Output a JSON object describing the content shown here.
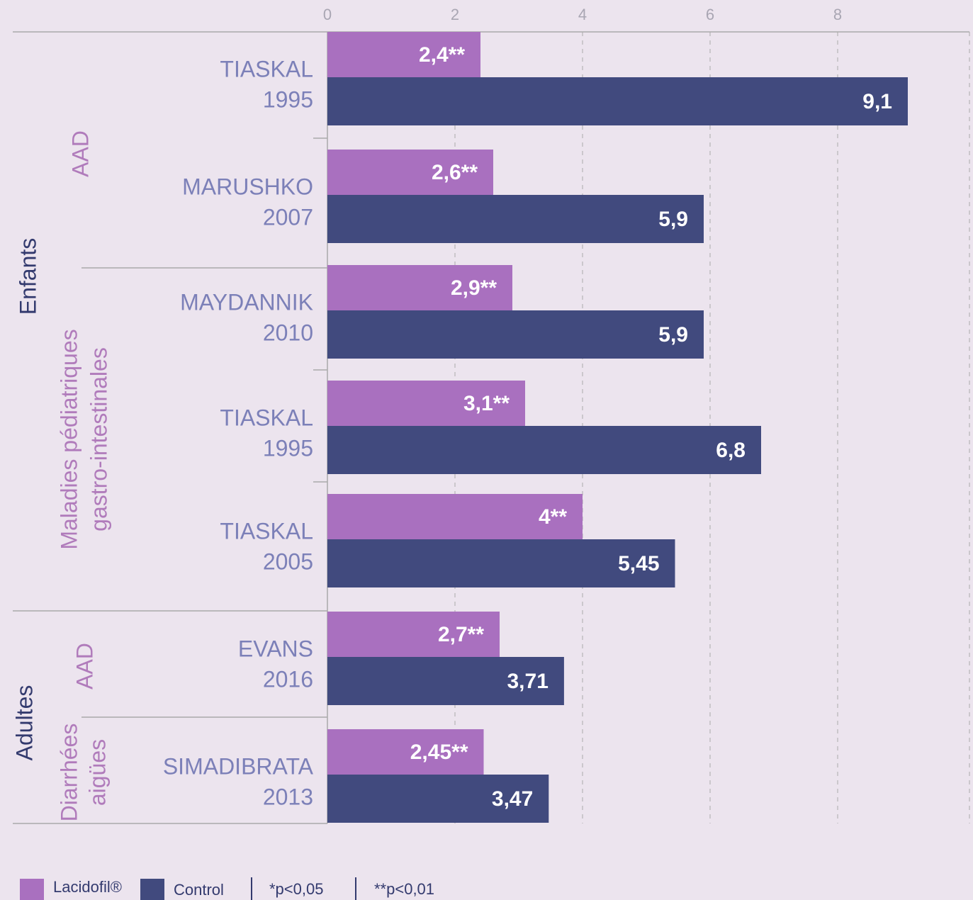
{
  "chart_data": {
    "type": "bar",
    "orientation": "horizontal",
    "categories": [
      [
        "TIASKAL",
        "1995"
      ],
      [
        "MARUSHKO",
        "2007"
      ],
      [
        "MAYDANNIK",
        "2010"
      ],
      [
        "TIASKAL",
        "1995"
      ],
      [
        "TIASKAL",
        "2005"
      ],
      [
        "EVANS",
        "2016"
      ],
      [
        "SIMADIBRATA",
        "2013"
      ]
    ],
    "series": [
      {
        "name": "Lacidofil®",
        "color": "#a970bf",
        "values": [
          2.4,
          2.6,
          2.9,
          3.1,
          4,
          2.7,
          2.45
        ],
        "value_labels": [
          "2,4**",
          "2,6**",
          "2,9**",
          "3,1**",
          "4**",
          "2,7**",
          "2,45**"
        ]
      },
      {
        "name": "Control",
        "color": "#414a7e",
        "values": [
          9.1,
          5.9,
          5.9,
          6.8,
          5.45,
          3.71,
          3.47
        ],
        "value_labels": [
          "9,1",
          "5,9",
          "5,9",
          "6,8",
          "5,45",
          "3,71",
          "3,47"
        ]
      }
    ],
    "groups": [
      {
        "label": "Enfants",
        "subgroups": [
          {
            "label": [
              "AAD"
            ]
          },
          {
            "label": [
              "Maladies pédiatriques",
              "gastro-intestinales"
            ]
          }
        ]
      },
      {
        "label": "Adultes",
        "subgroups": [
          {
            "label": [
              "AAD"
            ]
          },
          {
            "label": [
              "Diarrhées",
              "aigües"
            ]
          }
        ]
      }
    ],
    "notes": [
      "*p<0,05",
      "**p<0,01"
    ],
    "xlim": [
      0,
      10
    ],
    "xticks": [
      0,
      2,
      4,
      6,
      8
    ],
    "grid": true
  }
}
